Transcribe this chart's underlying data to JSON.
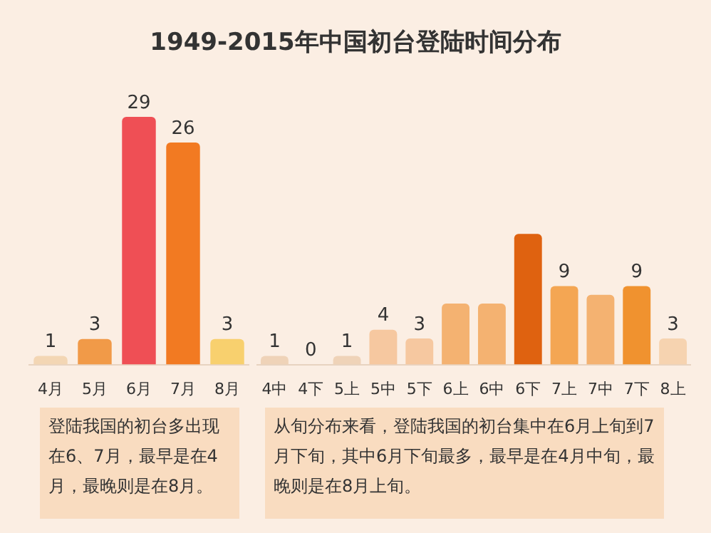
{
  "chart_data": [
    {
      "type": "bar",
      "title": "1949-2015年中国初台登陆时间分布",
      "categories": [
        "4月",
        "5月",
        "6月",
        "7月",
        "8月"
      ],
      "values": [
        1,
        3,
        29,
        26,
        3
      ],
      "colors": [
        "#f3d6b4",
        "#f19a48",
        "#ef4f55",
        "#f27a22",
        "#f8d06e"
      ],
      "data_labels": true,
      "annotations": [
        "登陆我国的初台多出现在6、7月，最早是在4月，最晚则是在8月。"
      ]
    },
    {
      "type": "bar",
      "categories": [
        "4中",
        "4下",
        "5上",
        "5中",
        "5下",
        "6上",
        "6中",
        "6下",
        "7上",
        "7中",
        "7下",
        "8上"
      ],
      "values": [
        1,
        0,
        1,
        4,
        3,
        7,
        7,
        15,
        9,
        8,
        9,
        3
      ],
      "colors": [
        "#efd3b8",
        "#efd3b8",
        "#efd3b8",
        "#f6c8a0",
        "#f6c8a0",
        "#f4b271",
        "#f4b271",
        "#df6210",
        "#f4a653",
        "#f4b271",
        "#f0922f",
        "#f6d3b0"
      ],
      "value_labels": [
        "1",
        "0",
        "1",
        "4",
        "3",
        null,
        null,
        null,
        "9",
        null,
        "9",
        "3"
      ],
      "annotations": [
        "从旬分布来看，登陆我国的初台集中在6月上旬到7月下旬，其中6月下旬最多，最早是在4月中旬，最晚则是在8月上旬。"
      ]
    }
  ]
}
